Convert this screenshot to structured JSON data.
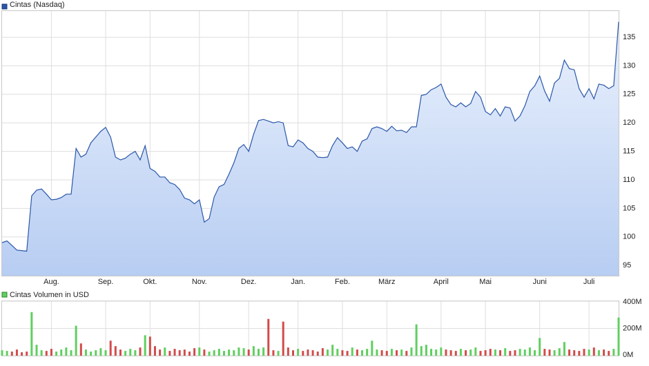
{
  "chart_data": [
    {
      "type": "line",
      "categories": [
        null,
        null,
        null,
        null,
        null,
        null,
        null,
        null,
        null,
        null,
        "Aug.",
        null,
        null,
        null,
        null,
        null,
        null,
        null,
        null,
        null,
        null,
        "Sep.",
        null,
        null,
        null,
        null,
        null,
        null,
        null,
        null,
        "Okt.",
        null,
        null,
        null,
        null,
        null,
        null,
        null,
        null,
        null,
        "Nov.",
        null,
        null,
        null,
        null,
        null,
        null,
        null,
        null,
        null,
        "Dez.",
        null,
        null,
        null,
        null,
        null,
        null,
        null,
        null,
        null,
        "Jan.",
        null,
        null,
        null,
        null,
        null,
        null,
        null,
        null,
        "Feb.",
        null,
        null,
        null,
        null,
        null,
        null,
        null,
        null,
        "März",
        null,
        null,
        null,
        null,
        null,
        null,
        null,
        null,
        null,
        null,
        "April",
        null,
        null,
        null,
        null,
        null,
        null,
        null,
        null,
        "Mai",
        null,
        null,
        null,
        null,
        null,
        null,
        null,
        null,
        null,
        null,
        "Juni",
        null,
        null,
        null,
        null,
        null,
        null,
        null,
        null,
        null,
        "Juli",
        null,
        null,
        null,
        null,
        null,
        null
      ],
      "series": [
        {
          "name": "Cintas (Nasdaq)",
          "color": "#2a56a8",
          "values": [
            99,
            99.3,
            98.5,
            97.7,
            97.6,
            97.5,
            107.2,
            108.2,
            108.4,
            107.5,
            106.5,
            106.6,
            106.9,
            107.5,
            107.5,
            115.5,
            114,
            114.5,
            116.5,
            117.5,
            118.5,
            119.2,
            117.5,
            114,
            113.5,
            113.8,
            114.5,
            115,
            113.5,
            116,
            112,
            111.5,
            110.5,
            110.5,
            109.5,
            109.2,
            108.3,
            106.8,
            106.5,
            105.8,
            106.5,
            102.6,
            103.2,
            107,
            108.8,
            109.2,
            111,
            113,
            115.5,
            116.2,
            115,
            118,
            120.4,
            120.6,
            120.3,
            120,
            120.2,
            120,
            116,
            115.8,
            117,
            116.5,
            115.5,
            115,
            114,
            113.9,
            114,
            116,
            117.4,
            116.5,
            115.5,
            115.8,
            115,
            116.8,
            117.2,
            119,
            119.3,
            119,
            118.5,
            119.4,
            118.6,
            118.7,
            118.3,
            119.3,
            119.3,
            124.8,
            125,
            125.8,
            126.2,
            126.8,
            124.5,
            123.2,
            122.8,
            123.5,
            122.8,
            123.4,
            125.5,
            124.5,
            122,
            121.4,
            122.5,
            121.2,
            122.8,
            122.6,
            120.3,
            121.2,
            123,
            125.5,
            126.5,
            128.2,
            125.6,
            123.8,
            127,
            127.8,
            131,
            129.5,
            129.3,
            126,
            124.5,
            126,
            124.2,
            126.8,
            126.6,
            126,
            126.5,
            137.7
          ]
        }
      ],
      "ylim": [
        93.2,
        139.6
      ],
      "yticks": [
        95,
        100,
        105,
        110,
        115,
        120,
        125,
        130,
        135
      ],
      "grid": true
    },
    {
      "type": "bar",
      "series": [
        {
          "name": "Cintas Volumen in USD",
          "color": "#5fcf5f",
          "values": [
            40,
            35,
            30,
            45,
            25,
            30,
            320,
            80,
            40,
            35,
            50,
            30,
            45,
            60,
            40,
            220,
            90,
            45,
            30,
            40,
            55,
            40,
            110,
            70,
            45,
            35,
            50,
            40,
            60,
            150,
            140,
            70,
            45,
            60,
            35,
            50,
            40,
            45,
            30,
            55,
            60,
            45,
            30,
            40,
            50,
            35,
            45,
            40,
            60,
            55,
            45,
            70,
            50,
            60,
            270,
            40,
            35,
            250,
            60,
            40,
            50,
            35,
            45,
            40,
            30,
            55,
            45,
            80,
            50,
            40,
            35,
            60,
            45,
            40,
            50,
            110,
            45,
            40,
            35,
            50,
            40,
            45,
            35,
            60,
            230,
            70,
            80,
            50,
            45,
            60,
            45,
            40,
            35,
            50,
            40,
            45,
            60,
            35,
            40,
            50,
            45,
            40,
            55,
            35,
            40,
            50,
            45,
            60,
            40,
            130,
            50,
            45,
            40,
            55,
            100,
            45,
            40,
            35,
            50,
            45,
            60,
            40,
            45,
            35,
            50,
            280
          ]
        }
      ],
      "down_color": "#d24b4b",
      "ylim": [
        0,
        400
      ],
      "yticks": [
        {
          "value": 0,
          "label": "0M"
        },
        {
          "value": 200,
          "label": "200M"
        },
        {
          "value": 400,
          "label": "400M"
        }
      ],
      "grid": true
    }
  ]
}
